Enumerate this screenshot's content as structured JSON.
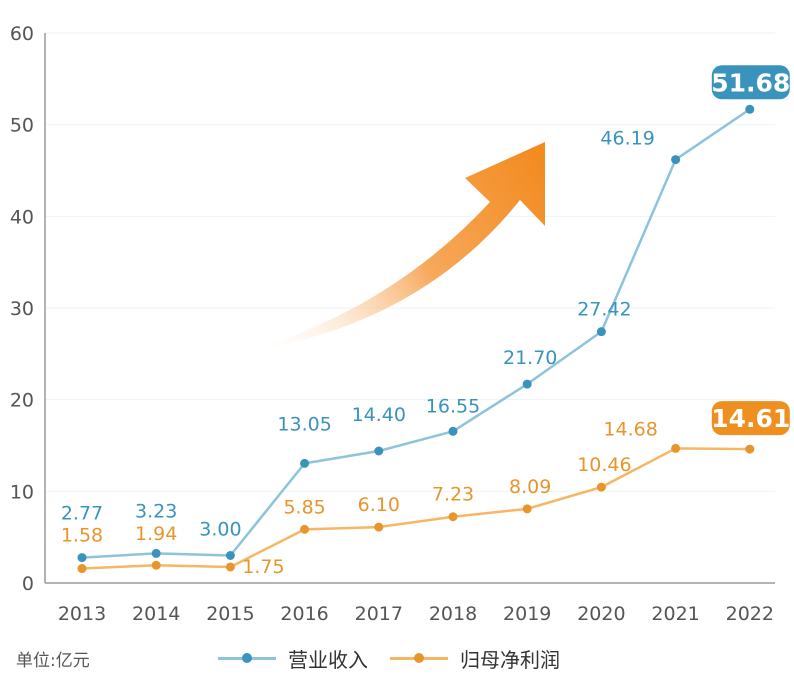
{
  "chart_data": {
    "type": "line",
    "categories": [
      "2013",
      "2014",
      "2015",
      "2016",
      "2017",
      "2018",
      "2019",
      "2020",
      "2021",
      "2022"
    ],
    "ylim": [
      0,
      60
    ],
    "yticks": [
      "0",
      "10",
      "20",
      "30",
      "40",
      "50",
      "60"
    ],
    "unit_label": "单位:亿元",
    "series": [
      {
        "name": "营业收入",
        "color": "#8fc3dc",
        "label_color": "#3a93bd",
        "values": [
          2.77,
          3.23,
          3.0,
          13.05,
          14.4,
          16.55,
          21.7,
          27.42,
          46.19,
          51.68
        ],
        "labels": [
          "2.77",
          "3.23",
          "3.00",
          "13.05",
          "14.40",
          "16.55",
          "21.70",
          "27.42",
          "46.19",
          "51.68"
        ]
      },
      {
        "name": "归母净利润",
        "color": "#f5b764",
        "label_color": "#e8952c",
        "values": [
          1.58,
          1.94,
          1.75,
          5.85,
          6.1,
          7.23,
          8.09,
          10.46,
          14.68,
          14.61
        ],
        "labels": [
          "1.58",
          "1.94",
          "1.75",
          "5.85",
          "6.10",
          "7.23",
          "8.09",
          "10.46",
          "14.68",
          "14.61"
        ]
      }
    ],
    "highlight_colors": {
      "revenue": "#3a93bd",
      "profit": "#ee8f1f"
    }
  }
}
